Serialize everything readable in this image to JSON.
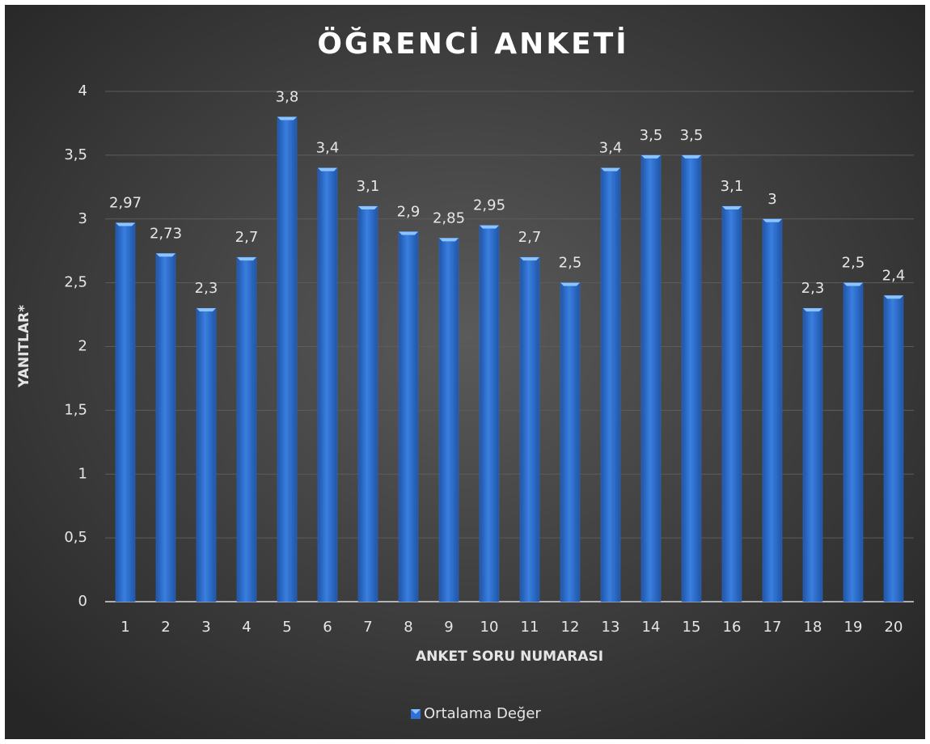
{
  "chart_data": {
    "type": "bar",
    "title": "ÖĞRENCİ ANKETİ",
    "y_label": "YANITLAR*",
    "x_label": "ANKET SORU NUMARASI",
    "categories": [
      "1",
      "2",
      "3",
      "4",
      "5",
      "6",
      "7",
      "8",
      "9",
      "10",
      "11",
      "12",
      "13",
      "14",
      "15",
      "16",
      "17",
      "18",
      "19",
      "20"
    ],
    "series": [
      {
        "name": "Ortalama Değer",
        "color": "#2e6fd1",
        "values": [
          2.97,
          2.73,
          2.3,
          2.7,
          3.8,
          3.4,
          3.1,
          2.9,
          2.85,
          2.95,
          2.7,
          2.5,
          3.4,
          3.5,
          3.5,
          3.1,
          3,
          2.3,
          2.5,
          2.4
        ],
        "value_labels": [
          "2,97",
          "2,73",
          "2,3",
          "2,7",
          "3,8",
          "3,4",
          "3,1",
          "2,9",
          "2,85",
          "2,95",
          "2,7",
          "2,5",
          "3,4",
          "3,5",
          "3,5",
          "3,1",
          "3",
          "2,3",
          "2,5",
          "2,4"
        ]
      }
    ],
    "ylim": [
      0,
      4
    ],
    "yticks": [
      0,
      {
        "value": 0.5,
        "label": "0,5"
      },
      1,
      {
        "value": 1.5,
        "label": "1,5"
      },
      2,
      {
        "value": 2.5,
        "label": "2,5"
      },
      3,
      {
        "value": 3.5,
        "label": "3,5"
      },
      4
    ],
    "grid": true,
    "legend": "bottom"
  }
}
